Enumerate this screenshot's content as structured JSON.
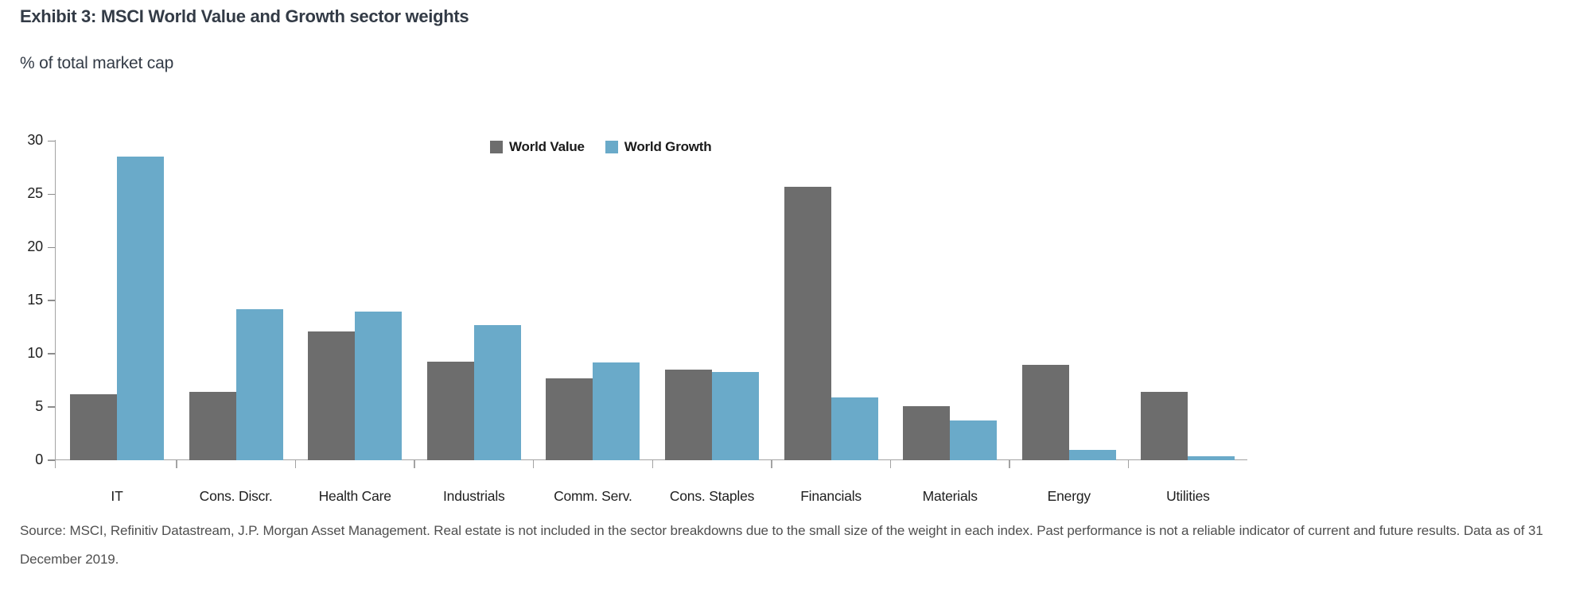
{
  "header": {
    "title": "Exhibit 3: MSCI World Value and Growth sector weights",
    "subtitle": "% of total market cap"
  },
  "chart_data": {
    "type": "bar",
    "title": "Exhibit 3: MSCI World Value and Growth sector weights",
    "ylabel": "% of total market cap",
    "xlabel": "",
    "ylim": [
      0,
      30
    ],
    "yticks": [
      0,
      5,
      10,
      15,
      20,
      25,
      30
    ],
    "grid": false,
    "legend_position": "top-center",
    "categories": [
      "IT",
      "Cons. Discr.",
      "Health Care",
      "Industrials",
      "Comm. Serv.",
      "Cons. Staples",
      "Financials",
      "Materials",
      "Energy",
      "Utilities"
    ],
    "series": [
      {
        "name": "World Value",
        "color": "#6d6d6d",
        "values": [
          6.2,
          6.4,
          12.1,
          9.3,
          7.7,
          8.5,
          25.7,
          5.1,
          9.0,
          6.4
        ]
      },
      {
        "name": "World Growth",
        "color": "#6aaac9",
        "values": [
          28.5,
          14.2,
          14.0,
          12.7,
          9.2,
          8.3,
          5.9,
          3.7,
          1.0,
          0.4
        ]
      }
    ]
  },
  "footer": {
    "source_text": "Source: MSCI, Refinitiv Datastream, J.P. Morgan Asset Management. Real estate is not included in the sector breakdowns due to the small size of the weight in each index. Past performance is not a reliable indicator of current and future results. Data as of 31 December 2019."
  }
}
